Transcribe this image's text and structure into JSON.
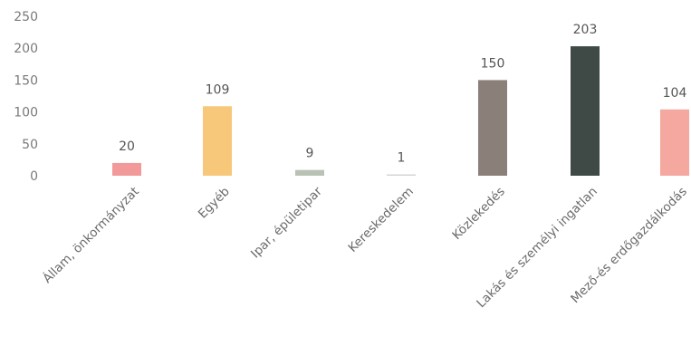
{
  "chart_data": {
    "type": "bar",
    "title": "",
    "xlabel": "",
    "ylabel": "",
    "ylim": [
      0,
      250
    ],
    "yticks": [
      0,
      50,
      100,
      150,
      200,
      250
    ],
    "grid": false,
    "legend": "none",
    "categories": [
      "Állam, önkormányzat",
      "Egyéb",
      "Ipar, épületipar",
      "Kereskedelem",
      "Közlekedés",
      "Lakás és személyi ingatlan",
      "Mező-és erdőgazdálkodás"
    ],
    "values": [
      20,
      109,
      9,
      1,
      150,
      203,
      104
    ],
    "data_labels": [
      "20",
      "109",
      "9",
      "1",
      "150",
      "203",
      "104"
    ],
    "colors": [
      "#f29a9a",
      "#f7c77a",
      "#b9c2b5",
      "#d4d4d4",
      "#8a7f79",
      "#3f4a47",
      "#f4a8a0"
    ]
  }
}
